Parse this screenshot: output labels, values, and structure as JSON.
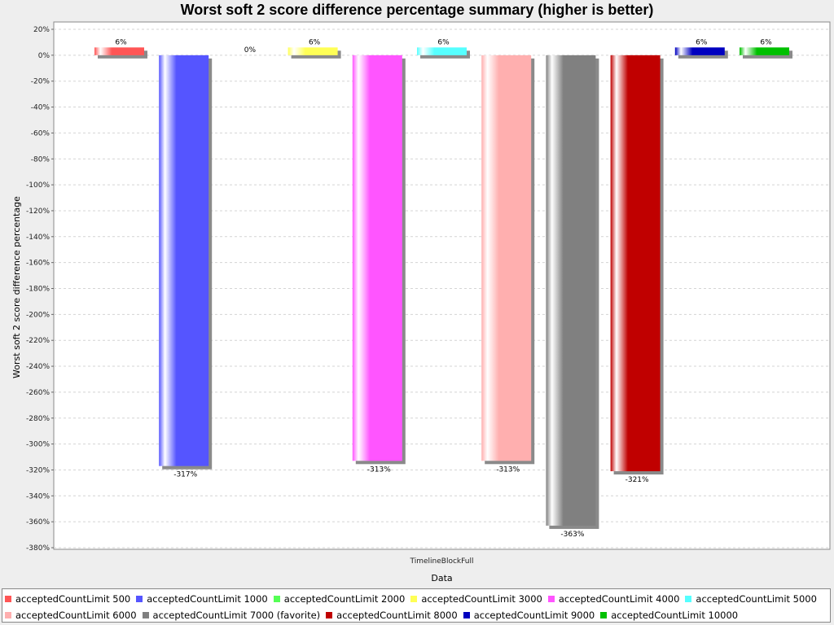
{
  "chart_data": {
    "type": "bar",
    "title": "Worst soft 2 score difference percentage summary (higher is better)",
    "xlabel": "Data",
    "ylabel": "Worst soft 2 score difference percentage",
    "categories": [
      "TimelineBlockFull"
    ],
    "ylim": [
      -380,
      20
    ],
    "yticks": [
      "20%",
      "0%",
      "-20%",
      "-40%",
      "-60%",
      "-80%",
      "-100%",
      "-120%",
      "-140%",
      "-160%",
      "-180%",
      "-200%",
      "-220%",
      "-240%",
      "-260%",
      "-280%",
      "-300%",
      "-320%",
      "-340%",
      "-360%",
      "-380%"
    ],
    "grid": true,
    "legend_position": "bottom",
    "series": [
      {
        "name": "acceptedCountLimit 500",
        "values": [
          6
        ],
        "label": "6%",
        "color": "#ff5555"
      },
      {
        "name": "acceptedCountLimit 1000",
        "values": [
          -317
        ],
        "label": "-317%",
        "color": "#5555ff"
      },
      {
        "name": "acceptedCountLimit 2000",
        "values": [
          0
        ],
        "label": "0%",
        "color": "#55ff55"
      },
      {
        "name": "acceptedCountLimit 3000",
        "values": [
          6
        ],
        "label": "6%",
        "color": "#ffff55"
      },
      {
        "name": "acceptedCountLimit 4000",
        "values": [
          -313
        ],
        "label": "-313%",
        "color": "#ff55ff"
      },
      {
        "name": "acceptedCountLimit 5000",
        "values": [
          6
        ],
        "label": "6%",
        "color": "#55ffff"
      },
      {
        "name": "acceptedCountLimit 6000",
        "values": [
          -313
        ],
        "label": "-313%",
        "color": "#ffafaf"
      },
      {
        "name": "acceptedCountLimit 7000 (favorite)",
        "values": [
          -363
        ],
        "label": "-363%",
        "color": "#808080"
      },
      {
        "name": "acceptedCountLimit 8000",
        "values": [
          -321
        ],
        "label": "-321%",
        "color": "#c00000"
      },
      {
        "name": "acceptedCountLimit 9000",
        "values": [
          6
        ],
        "label": "6%",
        "color": "#0000c0"
      },
      {
        "name": "acceptedCountLimit 10000",
        "values": [
          6
        ],
        "label": "6%",
        "color": "#00c000"
      }
    ]
  }
}
